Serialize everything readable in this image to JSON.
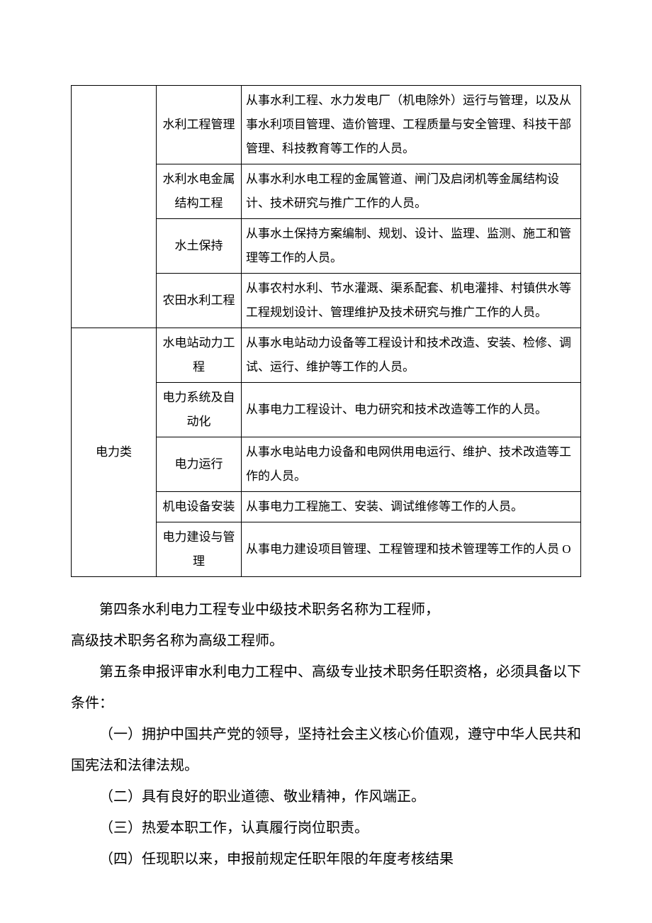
{
  "table": {
    "rows": [
      {
        "category": "",
        "sub": "水利工程管理",
        "desc": "从事水利工程、水力发电厂（机电除外）运行与管理，以及从事水利项目管理、造价管理、工程质量与安全管理、科技干部管理、科技教育等工作的人员。",
        "catRowspan": 4
      },
      {
        "sub": "水利水电金属结构工程",
        "desc": "从事水利水电工程的金属管道、闸门及启闭机等金属结构设计、技术研究与推广工作的人员。"
      },
      {
        "sub": "水土保持",
        "desc": "从事水土保持方案编制、规划、设计、监理、监测、施工和管理等工作的人员。"
      },
      {
        "sub": "农田水利工程",
        "desc": "从事农村水利、节水灌溉、渠系配套、机电灌排、村镇供水等工程规划设计、管理维护及技术研究与推广工作的人员。"
      },
      {
        "category": "电力类",
        "sub": "水电站动力工程",
        "desc": "从事水电站动力设备等工程设计和技术改造、安装、检修、调试、运行、维护等工作的人员。",
        "catRowspan": 5
      },
      {
        "sub": "电力系统及自动化",
        "desc": "从事电力工程设计、电力研究和技术改造等工作的人员。"
      },
      {
        "sub": "电力运行",
        "desc": "从事水电站电力设备和电网供用电运行、维护、技术改造等工作的人员。"
      },
      {
        "sub": "机电设备安装",
        "desc": "从事电力工程施工、安装、调试维修等工作的人员。"
      },
      {
        "sub": "电力建设与管理",
        "desc": "从事电力建设项目管理、工程管理和技术管理等工作的人员 O"
      }
    ]
  },
  "paragraphs": {
    "p4_head": "第四条",
    "p4_body1": "水利电力工程专业中级技术职务名称为工程师，",
    "p4_body2": "高级技术职务名称为高级工程师。",
    "p5_head": "第五条",
    "p5_body": "申报评审水利电力工程中、高级专业技术职务任职资格，必须具备以下条件：",
    "item1": "（一）拥护中国共产党的领导，坚持社会主义核心价值观，遵守中华人民共和国宪法和法律法规。",
    "item2": "（二）具有良好的职业道德、敬业精神，作风端正。",
    "item3": "（三）热爱本职工作，认真履行岗位职责。",
    "item4": "（四）任现职以来，申报前规定任职年限的年度考核结果"
  }
}
